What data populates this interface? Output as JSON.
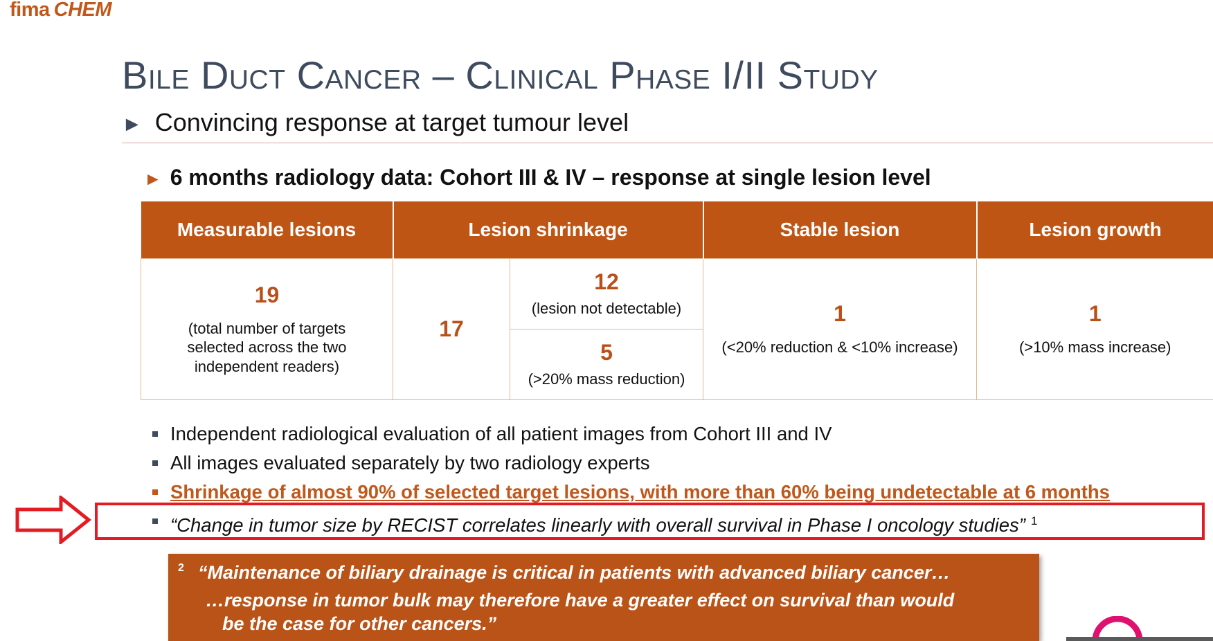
{
  "logo": {
    "part1": "fima",
    "part2": "CHEM"
  },
  "title": "Bile Duct Cancer – Clinical Phase I/II Study",
  "subtitle": "Convincing response at target tumour level",
  "section_heading": "6 months radiology data: Cohort III & IV – response at single lesion level",
  "table": {
    "headers": [
      "Measurable lesions",
      "Lesion shrinkage",
      "Stable lesion",
      "Lesion growth"
    ],
    "measurable": {
      "value": "19",
      "note": "(total number of targets selected across the two independent readers)"
    },
    "shrinkage": {
      "total": "17",
      "undetectable": {
        "value": "12",
        "note": "(lesion not detectable)"
      },
      "reduction": {
        "value": "5",
        "note": "(>20% mass reduction)"
      }
    },
    "stable": {
      "value": "1",
      "note": "(<20% reduction & <10% increase)"
    },
    "growth": {
      "value": "1",
      "note": "(>10% mass increase)"
    }
  },
  "bullets": [
    {
      "text": "Independent radiological evaluation of all patient images from Cohort III and IV"
    },
    {
      "text": "All images evaluated separately by two radiology experts"
    },
    {
      "text": "Shrinkage of almost 90% of selected target lesions, with more than 60% being undetectable at 6 months"
    },
    {
      "text": "“Change in tumor size by RECIST correlates linearly with overall survival in Phase I oncology studies”",
      "footnote": "1"
    }
  ],
  "quote": {
    "footnote": "2",
    "line1": "“Maintenance of biliary drainage is critical in patients with advanced biliary cancer…",
    "line2": "…response in tumor bulk may therefore have a greater effect on survival than would",
    "line3": "be the case for other cancers.”"
  },
  "colors": {
    "accent": "#bf5514",
    "title": "#3e4a5e",
    "highlight_box": "#e31b23"
  }
}
